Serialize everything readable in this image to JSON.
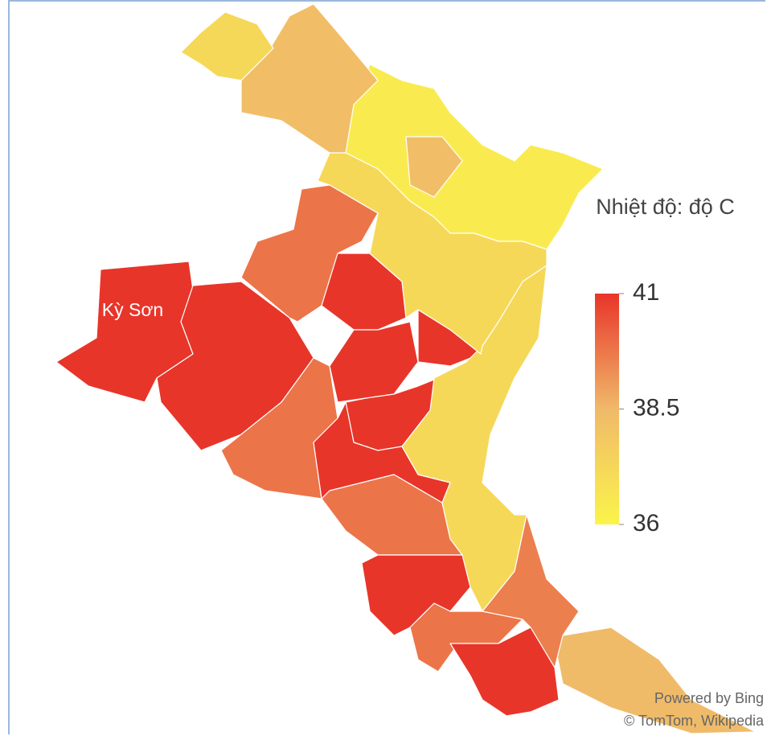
{
  "map": {
    "map_label": "Kỳ Sơn",
    "regions": [
      {
        "value": 41
      },
      {
        "value": 41
      },
      {
        "value": 39.8
      },
      {
        "value": 39.8
      },
      {
        "value": 41
      },
      {
        "value": 41
      },
      {
        "value": 41
      },
      {
        "value": 41
      },
      {
        "value": 41
      },
      {
        "value": 39.8
      },
      {
        "value": 41
      },
      {
        "value": 39.8
      },
      {
        "value": 41
      },
      {
        "value": 38.4
      },
      {
        "value": 39.6
      },
      {
        "value": 37.2
      },
      {
        "value": 36.4
      },
      {
        "value": 38.3
      },
      {
        "value": 37.2
      },
      {
        "value": 37.2
      },
      {
        "value": 38.3
      }
    ],
    "legend": {
      "title": "Nhiệt độ: độ C",
      "range": [
        36,
        41
      ],
      "ticks": [
        41,
        38.5,
        36
      ],
      "colors": [
        "#fbf44a",
        "#f0b96a",
        "#e8352a"
      ]
    },
    "credits": [
      "Powered by Bing",
      "© TomTom, Wikipedia"
    ]
  }
}
